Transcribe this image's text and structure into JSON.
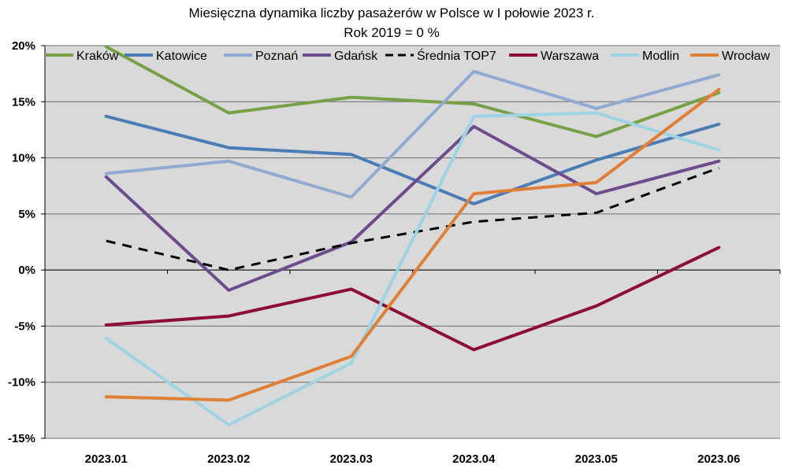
{
  "chart_data": {
    "type": "line",
    "title": "Miesięczna dynamika liczby pasażerów w Polsce w I połowie 2023 r.",
    "subtitle": "Rok 2019 = 0 %",
    "categories": [
      "2023.01",
      "2023.02",
      "2023.03",
      "2023.04",
      "2023.05",
      "2023.06"
    ],
    "ylim": [
      -15,
      20
    ],
    "yticks": [
      -15,
      -10,
      -5,
      0,
      5,
      10,
      15,
      20
    ],
    "ytick_labels": [
      "-15%",
      "-10%",
      "-5%",
      "0%",
      "5%",
      "10%",
      "15%",
      "20%"
    ],
    "grid": true,
    "legend_position": "top",
    "plot_background": "#d9d9d9",
    "series": [
      {
        "name": "Kraków",
        "color": "#77a047",
        "dash": false,
        "values": [
          19.9,
          14.0,
          15.4,
          14.8,
          11.9,
          15.8
        ]
      },
      {
        "name": "Katowice",
        "color": "#4a7cb5",
        "dash": false,
        "values": [
          13.7,
          10.9,
          10.3,
          5.9,
          9.8,
          13.0
        ]
      },
      {
        "name": "Poznań",
        "color": "#92a9d1",
        "dash": false,
        "values": [
          8.6,
          9.7,
          6.5,
          17.7,
          14.4,
          17.4
        ]
      },
      {
        "name": "Gdańsk",
        "color": "#6c4c8c",
        "dash": false,
        "values": [
          8.3,
          -1.8,
          2.5,
          12.8,
          6.8,
          9.7
        ]
      },
      {
        "name": "Średnia TOP7",
        "color": "#000000",
        "dash": true,
        "values": [
          2.6,
          0.0,
          2.4,
          4.3,
          5.1,
          9.1
        ]
      },
      {
        "name": "Warszawa",
        "color": "#8b0d38",
        "dash": false,
        "values": [
          -4.9,
          -4.1,
          -1.7,
          -7.1,
          -3.2,
          2.0
        ]
      },
      {
        "name": "Modlin",
        "color": "#9dd4e3",
        "dash": false,
        "values": [
          -6.1,
          -13.8,
          -8.3,
          13.7,
          14.0,
          10.7
        ]
      },
      {
        "name": "Wrocław",
        "color": "#e07f36",
        "dash": false,
        "values": [
          -11.3,
          -11.6,
          -7.7,
          6.8,
          7.8,
          16.1
        ]
      }
    ]
  }
}
